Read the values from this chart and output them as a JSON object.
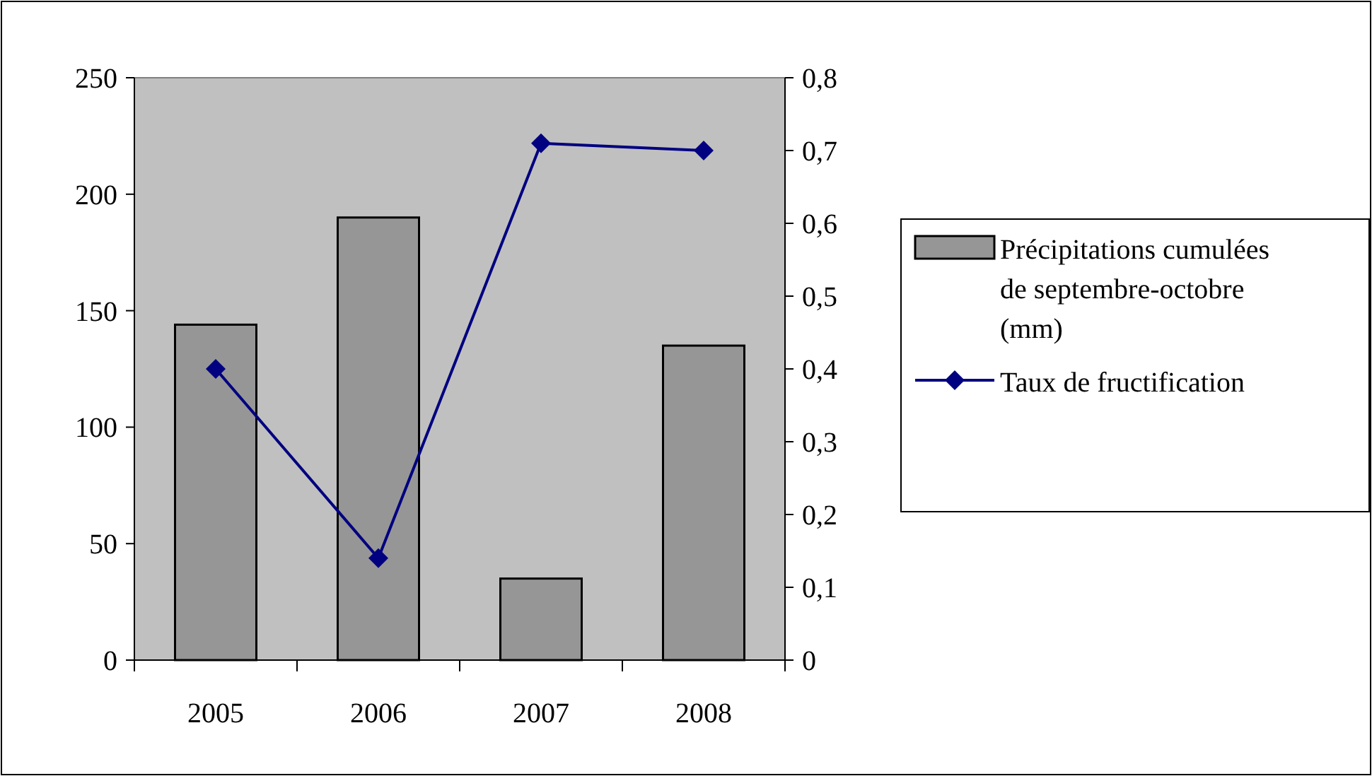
{
  "chart_data": {
    "type": "bar",
    "categories": [
      "2005",
      "2006",
      "2007",
      "2008"
    ],
    "series": [
      {
        "name": "Précipitations cumulées de septembre-octobre (mm)",
        "type": "bar",
        "color": "#969696",
        "values": [
          144,
          190,
          35,
          135
        ]
      },
      {
        "name": "Taux de fructification",
        "type": "line",
        "axis": "y2",
        "color": "#000080",
        "values": [
          0.4,
          0.14,
          0.71,
          0.7
        ],
        "marker": "diamond"
      }
    ],
    "ylim": [
      0,
      250
    ],
    "yticks": [
      0,
      50,
      100,
      150,
      200,
      250
    ],
    "y2lim": [
      0,
      0.8
    ],
    "y2ticks": [
      {
        "value": 0,
        "label": "0"
      },
      {
        "value": 0.1,
        "label": "0,1"
      },
      {
        "value": 0.2,
        "label": "0,2"
      },
      {
        "value": 0.3,
        "label": "0,3"
      },
      {
        "value": 0.4,
        "label": "0,4"
      },
      {
        "value": 0.5,
        "label": "0,5"
      },
      {
        "value": 0.6,
        "label": "0,6"
      },
      {
        "value": 0.7,
        "label": "0,7"
      },
      {
        "value": 0.8,
        "label": "0,8"
      }
    ],
    "grid": false,
    "legend": "right"
  }
}
